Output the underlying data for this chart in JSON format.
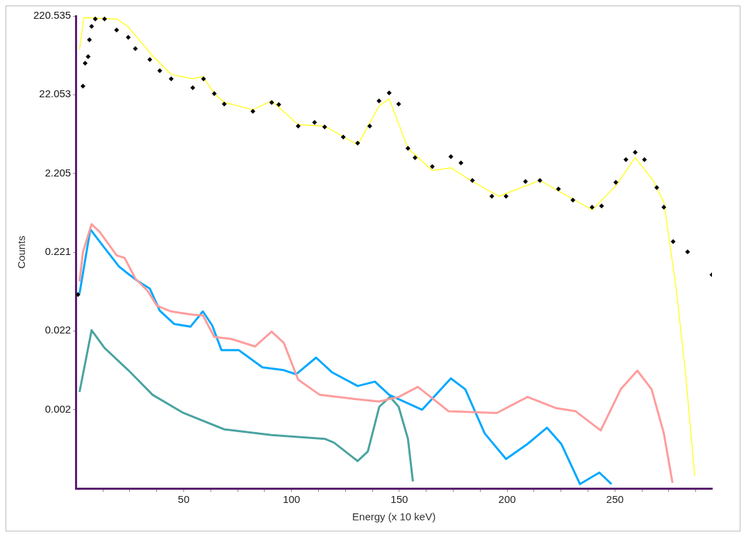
{
  "chart_data": {
    "type": "line",
    "xlabel": "Energy (x 10 keV)",
    "ylabel": "Counts",
    "log": "y",
    "grid": false,
    "xlim": [
      0,
      295
    ],
    "xticks": [
      {
        "value": 12.5,
        "label": null
      },
      {
        "value": 25,
        "label": null
      },
      {
        "value": 37.5,
        "label": null
      },
      50,
      {
        "value": 62.5,
        "label": null
      },
      {
        "value": 75,
        "label": null
      },
      {
        "value": 87.5,
        "label": null
      },
      100,
      {
        "value": 112.5,
        "label": null
      },
      {
        "value": 125,
        "label": null
      },
      {
        "value": 137.5,
        "label": null
      },
      150,
      {
        "value": 162.5,
        "label": null
      },
      {
        "value": 175,
        "label": null
      },
      {
        "value": 187.5,
        "label": null
      },
      200,
      {
        "value": 212.5,
        "label": null
      },
      {
        "value": 225,
        "label": null
      },
      {
        "value": 237.5,
        "label": null
      },
      250,
      {
        "value": 262.5,
        "label": null
      },
      {
        "value": 275,
        "label": null
      },
      {
        "value": 287.5,
        "label": null
      }
    ],
    "ylim": [
      0.000220535,
      220.535
    ],
    "yticks": [
      {
        "value": 0.00220535,
        "label": "0.002"
      },
      {
        "value": 0.0220535,
        "label": "0.022"
      },
      {
        "value": 0.220535,
        "label": "0.221"
      },
      {
        "value": 2.20535,
        "label": "2.205"
      },
      {
        "value": 22.0535,
        "label": "22.053"
      },
      220.535
    ],
    "series": [
      {
        "color": "#ffff00",
        "marker": "none",
        "x": [
          1.7,
          3.7,
          19.0,
          24.3,
          35.6,
          44.2,
          54.2,
          58.9,
          64.2,
          68.8,
          82.1,
          90.8,
          103.1,
          115.4,
          130.7,
          140.6,
          145.3,
          154.0,
          165.3,
          173.9,
          183.9,
          196.2,
          215.2,
          239.4,
          250.4,
          259.4,
          267.7,
          272.7,
          278.4,
          282.7,
          287.0
        ],
        "values": [
          83,
          210,
          202,
          160,
          68.6,
          40,
          35.1,
          37.5,
          22.8,
          17.6,
          14.2,
          18.4,
          9.2,
          8.8,
          5.1,
          15.8,
          19.6,
          4.6,
          2.4,
          2.6,
          1.74,
          1.13,
          1.8,
          0.76,
          1.53,
          3.5,
          1.8,
          0.95,
          0.076,
          0.0066,
          0.00032
        ]
      },
      {
        "color": "#ff9c9c",
        "marker": "none",
        "x": [
          1.7,
          3.3,
          7.3,
          11.0,
          19.0,
          22.6,
          27.6,
          33.3,
          37.6,
          44.2,
          54.2,
          58.9,
          64.2,
          72.2,
          83.1,
          90.8,
          96.4,
          103.1,
          113.1,
          129.7,
          140.7,
          149.7,
          158.6,
          172.9,
          195.2,
          209.5,
          222.8,
          231.8,
          243.4,
          252.7,
          260.4,
          267.0,
          272.7,
          276.7
        ],
        "values": [
          0.094,
          0.223,
          0.5,
          0.4,
          0.2,
          0.187,
          0.102,
          0.071,
          0.046,
          0.039,
          0.0355,
          0.0347,
          0.0185,
          0.0174,
          0.014,
          0.0216,
          0.0156,
          0.0053,
          0.0034,
          0.003,
          0.0028,
          0.0032,
          0.0043,
          0.0021,
          0.002,
          0.0032,
          0.0023,
          0.0021,
          0.0012,
          0.004,
          0.0069,
          0.004,
          0.0011,
          0.00026
        ]
      },
      {
        "color": "#00a8ff",
        "marker": "none",
        "x": [
          1.7,
          6.7,
          13.3,
          20.0,
          24.3,
          28.9,
          34.3,
          38.9,
          45.6,
          53.2,
          58.9,
          63.2,
          67.5,
          75.5,
          86.5,
          96.4,
          102.1,
          111.4,
          118.7,
          130.7,
          138.7,
          145.3,
          160.6,
          173.9,
          180.6,
          189.6,
          199.5,
          209.5,
          218.5,
          225.1,
          233.8,
          242.8,
          248.4
        ],
        "values": [
          0.066,
          0.43,
          0.25,
          0.145,
          0.117,
          0.094,
          0.076,
          0.04,
          0.027,
          0.025,
          0.039,
          0.026,
          0.0126,
          0.0126,
          0.0076,
          0.007,
          0.0062,
          0.0101,
          0.0066,
          0.0044,
          0.005,
          0.0034,
          0.0022,
          0.0055,
          0.004,
          0.0011,
          0.00052,
          0.00081,
          0.0013,
          0.00081,
          0.00025,
          0.00035,
          0.00025
        ]
      },
      {
        "color": "#4aa3a0",
        "marker": "none",
        "x": [
          1.7,
          7.3,
          13.3,
          24.3,
          35.6,
          49.9,
          68.8,
          90.8,
          115.4,
          119.7,
          130.7,
          135.4,
          140.7,
          145.7,
          149.7,
          154.0,
          156.3
        ],
        "values": [
          0.0037,
          0.0225,
          0.0134,
          0.007,
          0.0034,
          0.002,
          0.00124,
          0.00105,
          0.00094,
          0.00084,
          0.00049,
          0.00065,
          0.0024,
          0.0032,
          0.0024,
          0.00094,
          0.00027
        ]
      },
      {
        "type": "scatter",
        "color": "#000000",
        "marker": "diamond",
        "x": [
          1.0,
          3.3,
          4.3,
          5.7,
          6.3,
          7.3,
          9.0,
          13.3,
          18.9,
          24.3,
          27.6,
          34.3,
          38.9,
          44.2,
          54.2,
          59.2,
          64.2,
          68.8,
          82.1,
          90.8,
          94.1,
          103.1,
          110.7,
          115.4,
          124.0,
          130.7,
          136.3,
          140.6,
          145.3,
          149.7,
          154.0,
          157.3,
          165.3,
          173.9,
          178.6,
          183.9,
          192.9,
          199.5,
          208.5,
          215.2,
          223.8,
          230.5,
          239.4,
          243.8,
          250.4,
          255.1,
          259.4,
          263.7,
          269.4,
          272.7,
          277.0,
          283.7,
          295.0
        ],
        "values": [
          0.064,
          28.3,
          55.3,
          67.2,
          110,
          163,
          202,
          202,
          146,
          118,
          85,
          61.5,
          44.5,
          35.1,
          27.1,
          35.1,
          22.8,
          16.8,
          13.6,
          17.6,
          16.5,
          8.8,
          9.8,
          8.6,
          6.4,
          5.35,
          8.8,
          18.4,
          23.3,
          16.8,
          4.6,
          3.5,
          2.7,
          3.6,
          3.0,
          1.8,
          1.13,
          1.13,
          1.74,
          1.8,
          1.4,
          1.01,
          0.82,
          0.85,
          1.7,
          3.3,
          4.1,
          3.3,
          1.46,
          0.82,
          0.3,
          0.223,
          0.114
        ]
      }
    ]
  }
}
